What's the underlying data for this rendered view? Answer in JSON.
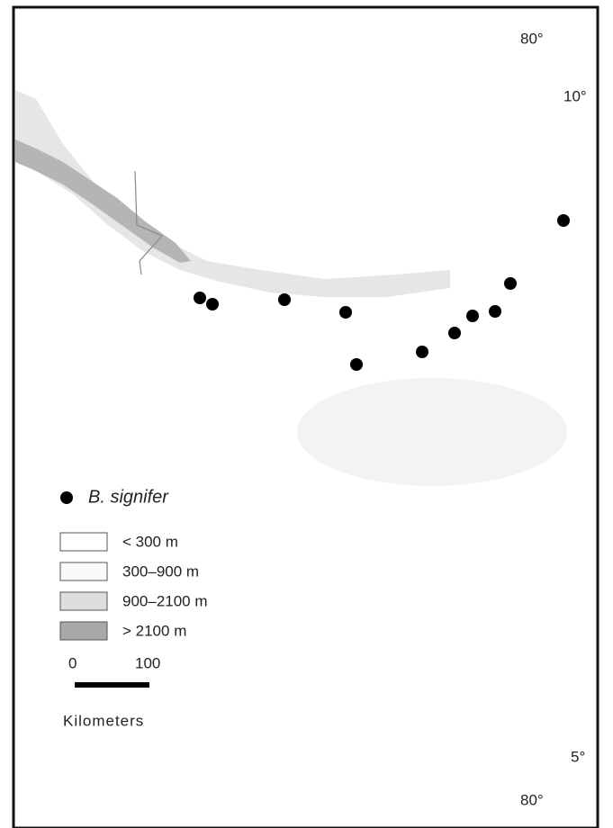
{
  "map": {
    "graticule": {
      "lon_top": "80°",
      "lat_top": "10°",
      "lat_bottom": "5°",
      "lon_bottom": "80°"
    },
    "legend": {
      "species": "B. signifer",
      "elevation": [
        "< 300 m",
        "300–900 m",
        "900–2100 m",
        "> 2100 m"
      ]
    },
    "scale_bar": {
      "start": "0",
      "end": "100",
      "unit": "Kilometers"
    }
  }
}
